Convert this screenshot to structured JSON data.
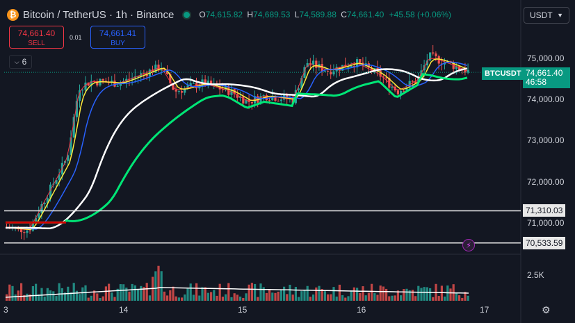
{
  "header": {
    "icon": "bitcoin-icon",
    "title": "Bitcoin / TetherUS · 1h · Binance",
    "open_label": "O",
    "open": "74,615.82",
    "high_label": "H",
    "high": "74,689.53",
    "low_label": "L",
    "low": "74,589.88",
    "close_label": "C",
    "close": "74,661.40",
    "change": "+45.58 (+0.06%)"
  },
  "trade": {
    "sell_price": "74,661.40",
    "sell_label": "SELL",
    "spread": "0.01",
    "buy_price": "74,661.41",
    "buy_label": "BUY"
  },
  "indicators_toggle": {
    "count": "6",
    "icon": "chevron-down-icon"
  },
  "currency_select": {
    "value": "USDT",
    "icon": "chevron-down-icon"
  },
  "price_axis": {
    "ticks": [
      {
        "label": "75,000.00",
        "value": 75000
      },
      {
        "label": "74,000.00",
        "value": 74000
      },
      {
        "label": "73,000.00",
        "value": 73000
      },
      {
        "label": "72,000.00",
        "value": 72000
      },
      {
        "label": "71,000.00",
        "value": 71000
      }
    ],
    "volume_tick": "2.5K"
  },
  "current": {
    "symbol": "BTCUSDT",
    "price": "74,661.40",
    "countdown": "46:58"
  },
  "levels": [
    {
      "label": "71,310.03",
      "value": 71310.03
    },
    {
      "label": "70,533.59",
      "value": 70533.59
    }
  ],
  "time_axis": [
    "3",
    "14",
    "15",
    "16",
    "17"
  ],
  "alert_icon": "lightning-icon",
  "settings_icon": "gear-icon",
  "colors": {
    "up": "#26a69a",
    "down": "#ef5350",
    "accent": "#089981"
  }
}
